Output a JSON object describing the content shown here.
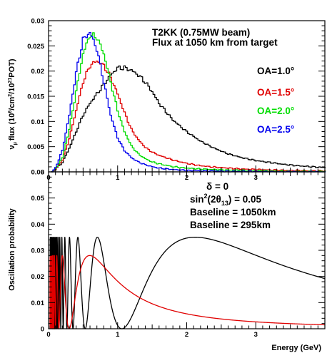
{
  "chart_data": [
    {
      "type": "line",
      "title": "T2KK (0.75MW beam)",
      "subtitle": "Flux at 1050 km from target",
      "xlabel": "",
      "ylabel": "ν_μ flux (10^6/cm^2/10^21POT)",
      "ylabel_parts": {
        "nu": "ν",
        "mu": "μ",
        "flux": "flux (10",
        "e1": "6",
        "mid": "/cm",
        "e2": "2",
        "mid2": "/10",
        "e3": "21",
        "end": "POT)"
      },
      "xlim": [
        0,
        4
      ],
      "ylim": [
        0,
        0.032
      ],
      "yticks": [
        "0",
        "0.005",
        "0.01",
        "0.015",
        "0.02",
        "0.025",
        "0.03"
      ],
      "xticks": [
        "0",
        "1",
        "2",
        "3"
      ],
      "grid": false,
      "legend_position": "right",
      "series": [
        {
          "name": "OA=1.0°",
          "color": "#000000",
          "x": [
            0.05,
            0.1,
            0.2,
            0.3,
            0.4,
            0.5,
            0.6,
            0.7,
            0.8,
            0.9,
            1.0,
            1.1,
            1.2,
            1.3,
            1.4,
            1.5,
            1.6,
            1.8,
            2.0,
            2.2,
            2.4,
            2.6,
            2.8,
            3.0,
            3.2,
            3.4,
            3.6,
            3.8,
            4.0
          ],
          "values": [
            0.0,
            0.0005,
            0.002,
            0.005,
            0.0085,
            0.012,
            0.0145,
            0.0165,
            0.0185,
            0.0205,
            0.022,
            0.022,
            0.0215,
            0.0205,
            0.019,
            0.017,
            0.0145,
            0.011,
            0.0085,
            0.0065,
            0.005,
            0.0038,
            0.003,
            0.0024,
            0.002,
            0.0016,
            0.0013,
            0.0011,
            0.0009
          ]
        },
        {
          "name": "OA=1.5°",
          "color": "#e00000",
          "x": [
            0.05,
            0.1,
            0.2,
            0.3,
            0.4,
            0.5,
            0.6,
            0.7,
            0.8,
            0.9,
            1.0,
            1.1,
            1.2,
            1.3,
            1.4,
            1.5,
            1.6,
            1.8,
            2.0,
            2.2,
            2.4,
            2.6,
            2.8,
            3.0,
            3.2,
            3.4,
            3.6,
            3.8,
            4.0
          ],
          "values": [
            0.0,
            0.0005,
            0.0025,
            0.007,
            0.013,
            0.019,
            0.0225,
            0.0235,
            0.0225,
            0.02,
            0.0165,
            0.0125,
            0.009,
            0.0068,
            0.0052,
            0.0042,
            0.0035,
            0.0025,
            0.0018,
            0.0013,
            0.001,
            0.0008,
            0.0006,
            0.0005,
            0.0004,
            0.0003,
            0.0003,
            0.0002,
            0.0002
          ]
        },
        {
          "name": "OA=2.0°",
          "color": "#00dd00",
          "x": [
            0.05,
            0.1,
            0.2,
            0.3,
            0.4,
            0.5,
            0.6,
            0.7,
            0.8,
            0.9,
            1.0,
            1.1,
            1.2,
            1.3,
            1.4,
            1.5,
            1.6,
            1.8,
            2.0,
            2.2,
            2.4,
            2.6,
            2.8,
            3.0,
            3.2,
            3.4,
            3.6,
            3.8,
            4.0
          ],
          "values": [
            0.0,
            0.0006,
            0.003,
            0.009,
            0.017,
            0.025,
            0.029,
            0.0285,
            0.025,
            0.019,
            0.013,
            0.0085,
            0.0055,
            0.0038,
            0.0028,
            0.0021,
            0.0017,
            0.0011,
            0.0008,
            0.0006,
            0.0005,
            0.0004,
            0.0003,
            0.0002,
            0.0002,
            0.0001,
            0.0001,
            0.0001,
            0.0001
          ]
        },
        {
          "name": "OA=2.5°",
          "color": "#0000ee",
          "x": [
            0.05,
            0.1,
            0.2,
            0.3,
            0.4,
            0.5,
            0.6,
            0.7,
            0.8,
            0.9,
            1.0,
            1.1,
            1.2,
            1.3,
            1.4,
            1.5,
            1.6,
            1.8,
            2.0,
            2.2,
            2.4,
            2.6,
            2.8,
            3.0,
            3.2,
            3.4,
            3.6,
            3.8,
            4.0
          ],
          "values": [
            0.0,
            0.0008,
            0.0045,
            0.012,
            0.021,
            0.028,
            0.0295,
            0.026,
            0.019,
            0.012,
            0.0072,
            0.0045,
            0.003,
            0.0021,
            0.0015,
            0.0011,
            0.0008,
            0.0005,
            0.0003,
            0.0002,
            0.0002,
            0.0001,
            0.0001,
            0.0001,
            0.0,
            0.0,
            0.0,
            0.0,
            0.0
          ]
        }
      ]
    },
    {
      "type": "line",
      "title": "",
      "xlabel": "Energy (GeV)",
      "ylabel": "Oscillation probability",
      "xlim": [
        0,
        4
      ],
      "ylim": [
        0,
        0.06
      ],
      "xticks": [
        "0",
        "1",
        "2",
        "3"
      ],
      "yticks": [
        "0",
        "0.01",
        "0.02",
        "0.03",
        "0.04",
        "0.05",
        "0.06"
      ],
      "grid": false,
      "annotations": [
        "δ = 0",
        "sin2(2θ13) = 0.05"
      ],
      "annotation_parts": {
        "s1": "sin",
        "e1": "2",
        "s2": "(2θ",
        "e2": "13",
        "s3": ") = 0.05"
      },
      "series": [
        {
          "name": "Baseline = 1050km",
          "color": "#000000",
          "formula": "0.035*sin^2(1.27*dm2*L/E), dm2=0.0025 eV^2, L=1050 km"
        },
        {
          "name": "Baseline = 295km",
          "color": "#e00000",
          "formula": "0.028*sin^2(1.27*dm2*L/E), dm2=0.0025 eV^2, L=295 km"
        }
      ]
    }
  ]
}
